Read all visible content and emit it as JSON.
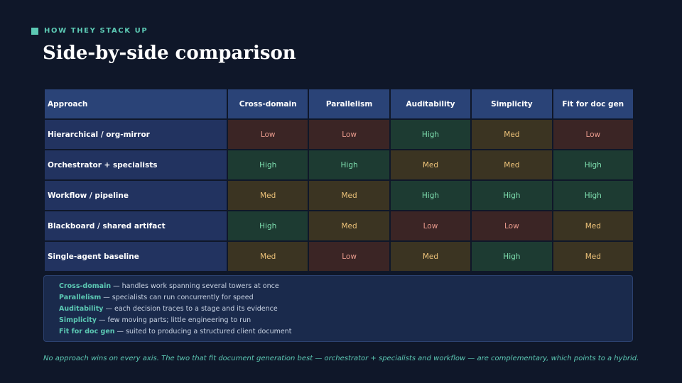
{
  "eyebrow": "HOW THEY STACK UP",
  "title": "Side-by-side comparison",
  "table": {
    "headers": [
      "Approach",
      "Cross-domain",
      "Parallelism",
      "Auditability",
      "Simplicity",
      "Fit for doc gen"
    ],
    "rows": [
      {
        "label": "Hierarchical / org-mirror",
        "values": [
          "Low",
          "Low",
          "High",
          "Med",
          "Low"
        ]
      },
      {
        "label": "Orchestrator + specialists",
        "values": [
          "High",
          "High",
          "Med",
          "Med",
          "High"
        ]
      },
      {
        "label": "Workflow / pipeline",
        "values": [
          "Med",
          "Med",
          "High",
          "High",
          "High"
        ]
      },
      {
        "label": "Blackboard / shared artifact",
        "values": [
          "High",
          "Med",
          "Low",
          "Low",
          "Med"
        ]
      },
      {
        "label": "Single-agent baseline",
        "values": [
          "Med",
          "Low",
          "Med",
          "High",
          "Med"
        ]
      }
    ]
  },
  "legend": [
    {
      "term": "Cross-domain",
      "desc": " — handles work spanning several towers at once"
    },
    {
      "term": "Parallelism",
      "desc": " — specialists can run concurrently for speed"
    },
    {
      "term": "Auditability",
      "desc": " — each decision traces to a stage and its evidence"
    },
    {
      "term": "Simplicity",
      "desc": " — few moving parts; little engineering to run"
    },
    {
      "term": "Fit for doc gen",
      "desc": " — suited to producing a structured client document"
    }
  ],
  "footnote": "No approach wins on every axis. The two that fit document generation best — orchestrator + specialists and workflow — are complementary, which points to a hybrid.",
  "colors": {
    "accent": "#5cc9b4",
    "high_bg": "#1d3b32",
    "high_text": "#7fe0b0",
    "med_bg": "#3b3422",
    "med_text": "#efc47a",
    "low_bg": "#3b2525",
    "low_text": "#e89a8c"
  }
}
